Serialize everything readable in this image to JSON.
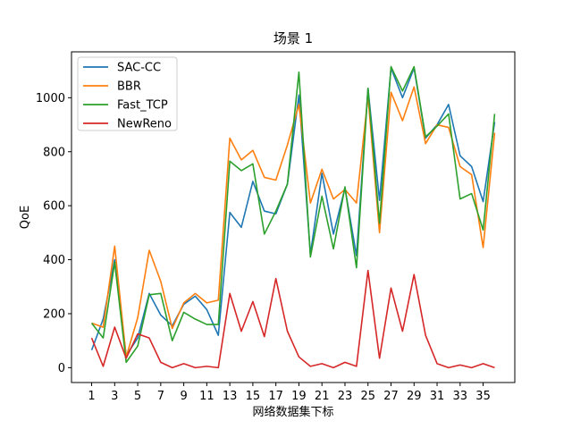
{
  "chart_data": {
    "type": "line",
    "title": "场景 1",
    "xlabel": "网络数据集下标",
    "ylabel": "QoE",
    "xlim": [
      -0.75,
      37.75
    ],
    "ylim": [
      -55,
      1170
    ],
    "xticks": [
      1,
      3,
      5,
      7,
      9,
      11,
      13,
      15,
      17,
      19,
      21,
      23,
      25,
      27,
      29,
      31,
      33,
      35
    ],
    "yticks": [
      0,
      200,
      400,
      600,
      800,
      1000
    ],
    "grid": false,
    "legend_position": "top-left",
    "x": [
      1,
      2,
      3,
      4,
      5,
      6,
      7,
      8,
      9,
      10,
      11,
      12,
      13,
      14,
      15,
      16,
      17,
      18,
      19,
      20,
      21,
      22,
      23,
      24,
      25,
      26,
      27,
      28,
      29,
      30,
      31,
      32,
      33,
      34,
      35,
      36
    ],
    "series": [
      {
        "name": "SAC-CC",
        "color": "#1f77b4",
        "values": [
          65,
          180,
          400,
          45,
          110,
          275,
          195,
          155,
          235,
          265,
          215,
          120,
          575,
          520,
          690,
          580,
          570,
          680,
          1010,
          420,
          720,
          495,
          665,
          415,
          1035,
          620,
          1110,
          1000,
          1110,
          850,
          900,
          975,
          785,
          745,
          615,
          910
        ]
      },
      {
        "name": "BBR",
        "color": "#ff7f0e",
        "values": [
          165,
          150,
          450,
          40,
          185,
          435,
          320,
          145,
          240,
          275,
          240,
          250,
          850,
          770,
          805,
          705,
          695,
          825,
          975,
          610,
          735,
          625,
          660,
          610,
          1005,
          500,
          1020,
          915,
          1040,
          830,
          900,
          890,
          745,
          715,
          445,
          870
        ]
      },
      {
        "name": "Fast_TCP",
        "color": "#2ca02c",
        "values": [
          165,
          110,
          390,
          20,
          80,
          270,
          275,
          100,
          205,
          180,
          160,
          160,
          765,
          730,
          755,
          495,
          580,
          680,
          1095,
          410,
          635,
          440,
          670,
          370,
          1035,
          535,
          1115,
          1025,
          1115,
          855,
          895,
          940,
          625,
          645,
          510,
          940
        ]
      },
      {
        "name": "NewReno",
        "color": "#d62728",
        "values": [
          110,
          5,
          150,
          35,
          125,
          110,
          20,
          0,
          15,
          0,
          5,
          0,
          275,
          135,
          245,
          115,
          330,
          135,
          40,
          5,
          15,
          0,
          20,
          5,
          360,
          35,
          295,
          135,
          345,
          120,
          15,
          0,
          10,
          0,
          15,
          0
        ]
      }
    ]
  }
}
